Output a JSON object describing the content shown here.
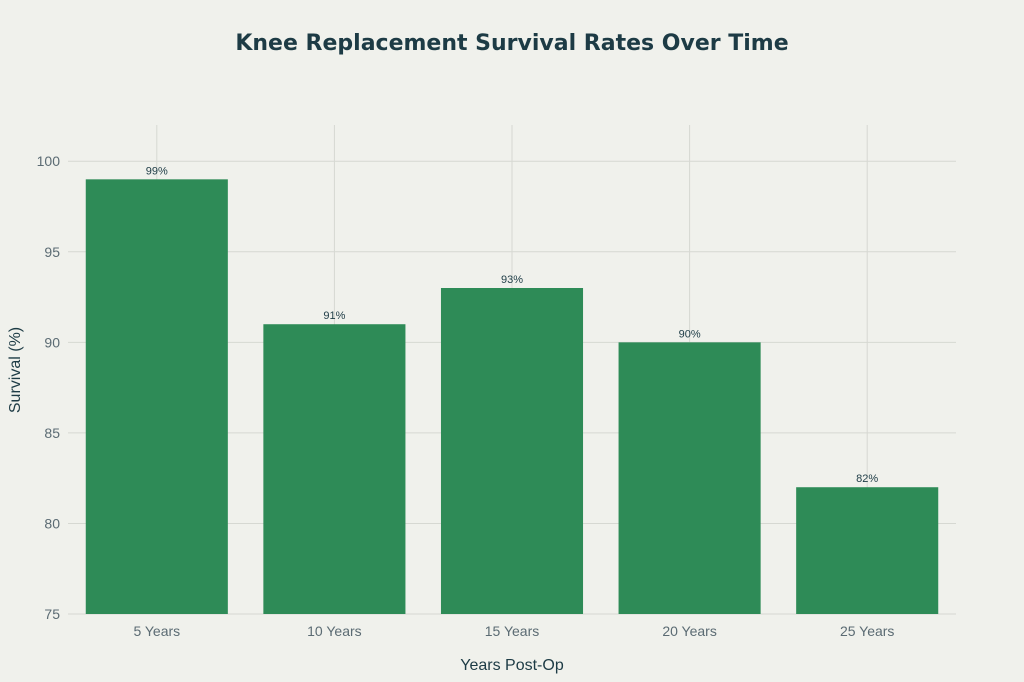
{
  "chart_data": {
    "type": "bar",
    "title": "Knee Replacement Survival Rates Over Time",
    "xlabel": "Years Post-Op",
    "ylabel": "Survival (%)",
    "categories": [
      "5 Years",
      "10 Years",
      "15 Years",
      "20 Years",
      "25 Years"
    ],
    "values": [
      99,
      91,
      93,
      90,
      82
    ],
    "data_labels": [
      "99%",
      "91%",
      "93%",
      "90%",
      "82%"
    ],
    "ylim": [
      75,
      102
    ],
    "yticks": [
      75,
      80,
      85,
      90,
      95,
      100
    ],
    "ytick_labels": [
      "75",
      "80",
      "85",
      "90",
      "95",
      "100"
    ],
    "grid": true,
    "bar_color": "#2e8b57"
  }
}
